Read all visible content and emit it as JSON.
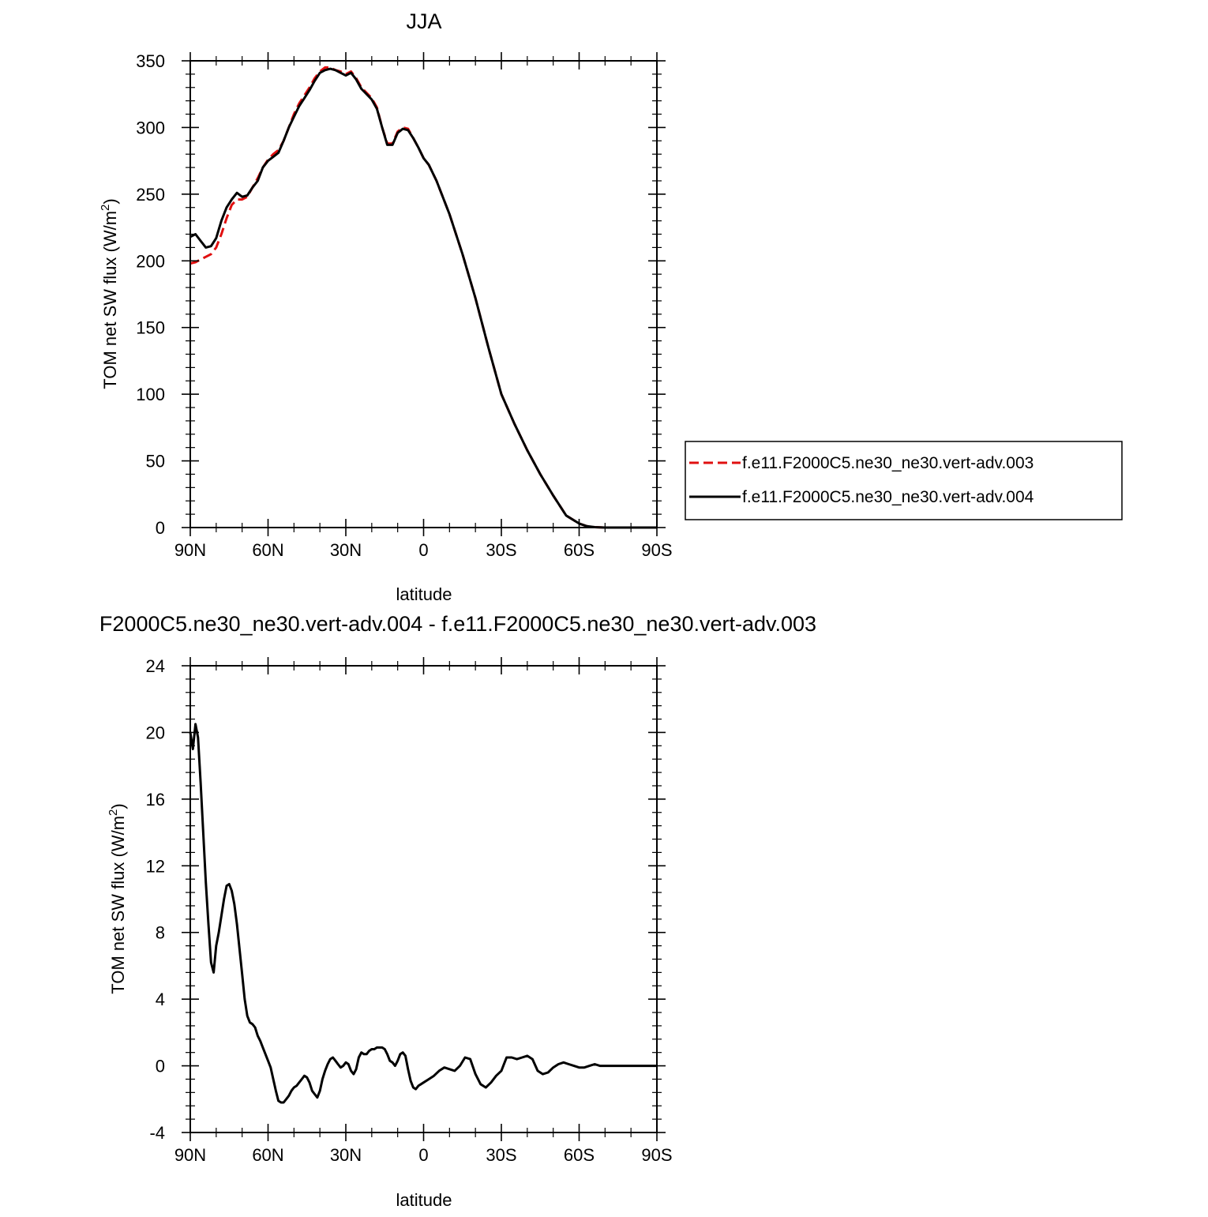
{
  "chart_data": [
    {
      "type": "line",
      "title": "JJA",
      "xlabel": "latitude",
      "ylabel": "TOM net SW flux (W/m",
      "ylabel_sup": "2",
      "ylabel_end": ")",
      "xlim": [
        90,
        -90
      ],
      "ylim": [
        0,
        350
      ],
      "xticks": [
        90,
        60,
        30,
        0,
        -30,
        -60,
        -90
      ],
      "xtick_labels": [
        "90N",
        "60N",
        "30N",
        "0",
        "30S",
        "60S",
        "90S"
      ],
      "yticks": [
        0,
        50,
        100,
        150,
        200,
        250,
        300,
        350
      ],
      "ytick_labels": [
        "0",
        "50",
        "100",
        "150",
        "200",
        "250",
        "300",
        "350"
      ],
      "legend_position": "right",
      "series": [
        {
          "name": "f.e11.F2000C5.ne30_ne30.vert-adv.003",
          "color": "#e01010",
          "dash": "dashed",
          "x": [
            90,
            88,
            86,
            84,
            82,
            80,
            78,
            76,
            74,
            72,
            70,
            68,
            66,
            64,
            62,
            60,
            58,
            56,
            54,
            52,
            50,
            48,
            46,
            44,
            42,
            40,
            38,
            36,
            34,
            32,
            30,
            28,
            26,
            24,
            22,
            20,
            18,
            16,
            14,
            12,
            10,
            8,
            6,
            4,
            2,
            0,
            -2,
            -5,
            -10,
            -15,
            -20,
            -25,
            -30,
            -35,
            -40,
            -45,
            -50,
            -55,
            -60,
            -63,
            -66,
            -70,
            -75,
            -80,
            -85,
            -90
          ],
          "y": [
            198,
            199,
            201,
            203,
            205,
            210,
            220,
            232,
            242,
            246,
            246,
            248,
            255,
            262,
            270,
            276,
            280,
            283,
            290,
            300,
            310,
            318,
            324,
            330,
            337,
            342,
            345,
            345,
            343,
            342,
            340,
            342,
            337,
            330,
            326,
            322,
            315,
            300,
            288,
            288,
            297,
            300,
            299,
            292,
            285,
            277,
            272,
            260,
            235,
            205,
            172,
            135,
            100,
            78,
            58,
            40,
            24,
            9,
            3,
            1,
            0.3,
            0,
            0,
            0,
            0,
            0
          ]
        },
        {
          "name": "f.e11.F2000C5.ne30_ne30.vert-adv.004",
          "color": "#000000",
          "dash": "solid",
          "x": [
            90,
            88,
            86,
            84,
            82,
            80,
            78,
            76,
            74,
            72,
            70,
            68,
            66,
            64,
            62,
            60,
            58,
            56,
            54,
            52,
            50,
            48,
            46,
            44,
            42,
            40,
            38,
            36,
            34,
            32,
            30,
            28,
            26,
            24,
            22,
            20,
            18,
            16,
            14,
            12,
            10,
            8,
            6,
            4,
            2,
            0,
            -2,
            -5,
            -10,
            -15,
            -20,
            -25,
            -30,
            -35,
            -40,
            -45,
            -50,
            -55,
            -60,
            -63,
            -66,
            -70,
            -75,
            -80,
            -85,
            -90
          ],
          "y": [
            218,
            220,
            215,
            210,
            211,
            217,
            230,
            240,
            246,
            251,
            248,
            249,
            255,
            260,
            270,
            275,
            278,
            281,
            290,
            300,
            308,
            316,
            322,
            328,
            335,
            341,
            343,
            344,
            343,
            341,
            339,
            341,
            336,
            329,
            325,
            321,
            314,
            300,
            287,
            287,
            296,
            299,
            298,
            292,
            285,
            277,
            272,
            260,
            235,
            205,
            172,
            135,
            100,
            78,
            58,
            40,
            24,
            9,
            3,
            1,
            0.3,
            0,
            0,
            0,
            0,
            0
          ]
        }
      ]
    },
    {
      "type": "line",
      "title": "F2000C5.ne30_ne30.vert-adv.004 - f.e11.F2000C5.ne30_ne30.vert-adv.003",
      "xlabel": "latitude",
      "ylabel": "TOM net SW flux (W/m",
      "ylabel_sup": "2",
      "ylabel_end": ")",
      "xlim": [
        90,
        -90
      ],
      "ylim": [
        -4,
        24
      ],
      "xticks": [
        90,
        60,
        30,
        0,
        -30,
        -60,
        -90
      ],
      "xtick_labels": [
        "90N",
        "60N",
        "30N",
        "0",
        "30S",
        "60S",
        "90S"
      ],
      "yticks": [
        -4,
        0,
        4,
        8,
        12,
        16,
        20,
        24
      ],
      "ytick_labels": [
        "-4",
        "0",
        "4",
        "8",
        "12",
        "16",
        "20",
        "24"
      ],
      "series": [
        {
          "color": "#000000",
          "dash": "solid",
          "x": [
            90,
            89,
            88,
            87,
            86,
            85,
            84,
            83,
            82,
            81,
            80,
            79,
            78,
            77,
            76,
            75,
            74,
            73,
            72,
            71,
            70,
            69,
            68,
            67,
            66,
            65,
            64,
            63,
            62,
            61,
            60,
            59,
            58,
            57,
            56,
            55,
            54,
            53,
            52,
            51,
            50,
            49,
            48,
            47,
            46,
            45,
            44,
            43,
            42,
            41,
            40,
            39,
            38,
            37,
            36,
            35,
            34,
            33,
            32,
            31,
            30,
            29,
            28,
            27,
            26,
            25,
            24,
            23,
            22,
            21,
            20,
            19,
            18,
            17,
            16,
            15,
            14,
            13,
            12,
            11,
            10,
            9,
            8,
            7,
            6,
            5,
            4,
            3,
            2,
            1,
            0,
            -2,
            -4,
            -6,
            -8,
            -10,
            -12,
            -14,
            -16,
            -18,
            -20,
            -22,
            -24,
            -26,
            -28,
            -30,
            -32,
            -34,
            -36,
            -38,
            -40,
            -42,
            -44,
            -46,
            -48,
            -50,
            -52,
            -54,
            -56,
            -58,
            -60,
            -62,
            -64,
            -66,
            -68,
            -70,
            -75,
            -80,
            -85,
            -90
          ],
          "y": [
            20,
            19,
            20.5,
            19.7,
            17,
            14,
            11,
            8.5,
            6.2,
            5.6,
            7.2,
            8,
            9,
            10,
            10.8,
            10.9,
            10.5,
            9.7,
            8.5,
            7,
            5.5,
            4,
            3,
            2.6,
            2.5,
            2.3,
            1.8,
            1.5,
            1.1,
            0.7,
            0.3,
            -0.1,
            -0.8,
            -1.5,
            -2.1,
            -2.2,
            -2.2,
            -2.0,
            -1.8,
            -1.5,
            -1.3,
            -1.2,
            -1.0,
            -0.8,
            -0.6,
            -0.7,
            -1.0,
            -1.5,
            -1.7,
            -1.9,
            -1.5,
            -0.8,
            -0.3,
            0.1,
            0.4,
            0.5,
            0.3,
            0.1,
            -0.1,
            0.0,
            0.2,
            0.1,
            -0.3,
            -0.5,
            -0.2,
            0.5,
            0.8,
            0.7,
            0.7,
            0.9,
            1.0,
            1.0,
            1.1,
            1.1,
            1.1,
            1.0,
            0.7,
            0.3,
            0.2,
            0.0,
            0.3,
            0.7,
            0.8,
            0.6,
            -0.2,
            -0.9,
            -1.3,
            -1.4,
            -1.2,
            -1.1,
            -1.0,
            -0.8,
            -0.6,
            -0.3,
            -0.1,
            -0.2,
            -0.3,
            0.0,
            0.5,
            0.4,
            -0.5,
            -1.1,
            -1.3,
            -1.0,
            -0.6,
            -0.3,
            0.5,
            0.5,
            0.4,
            0.5,
            0.6,
            0.4,
            -0.3,
            -0.5,
            -0.4,
            -0.1,
            0.1,
            0.2,
            0.1,
            0.0,
            -0.1,
            -0.1,
            0.0,
            0.1,
            0.0,
            0.0,
            0.0,
            0.0,
            0.0,
            0.0
          ]
        }
      ]
    }
  ]
}
